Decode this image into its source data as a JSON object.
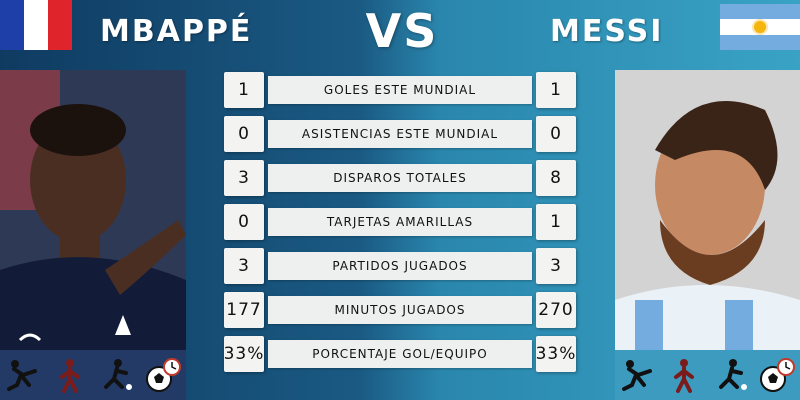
{
  "header": {
    "left_player": "MBAPPÉ",
    "right_player": "MESSI",
    "vs": "VS"
  },
  "flags": {
    "left": {
      "name": "france-flag",
      "colors": [
        "#1f3fa8",
        "#ffffff",
        "#e0242b"
      ]
    },
    "right": {
      "name": "argentina-flag",
      "colors": [
        "#74acdf",
        "#ffffff",
        "#74acdf"
      ],
      "sun": "#f6b40e"
    }
  },
  "stats": [
    {
      "left": "1",
      "label": "GOLES ESTE MUNDIAL",
      "right": "1"
    },
    {
      "left": "0",
      "label": "ASISTENCIAS ESTE MUNDIAL",
      "right": "0"
    },
    {
      "left": "3",
      "label": "DISPAROS TOTALES",
      "right": "8"
    },
    {
      "left": "0",
      "label": "TARJETAS AMARILLAS",
      "right": "1"
    },
    {
      "left": "3",
      "label": "PARTIDOS JUGADOS",
      "right": "3"
    },
    {
      "left": "177",
      "label": "MINUTOS JUGADOS",
      "right": "270"
    },
    {
      "left": "33%",
      "label": "PORCENTAJE GOL/EQUIPO",
      "right": "33%"
    }
  ],
  "footer_icons": [
    "kick-icon",
    "player-icon",
    "shoot-icon",
    "ball-clock-icon"
  ],
  "colors": {
    "left_dark": "#0f3b61",
    "right_light": "#39a3c5",
    "box": "#f3f4f2"
  }
}
